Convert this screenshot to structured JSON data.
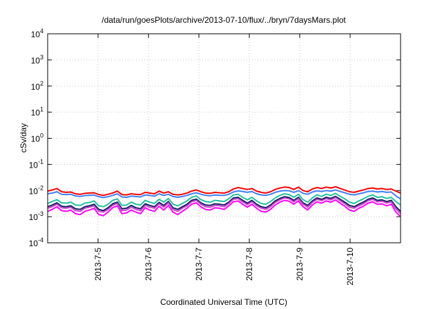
{
  "chart_data": {
    "type": "line",
    "title": "/data/run/goesPlots/archive/2013-07-10/flux/../bryn/7daysMars.plot",
    "xlabel": "Coordinated Universal Time (UTC)",
    "ylabel": "cSv/day",
    "yscale": "log",
    "ylim": [
      0.0001,
      10000
    ],
    "xlim": [
      0,
      7
    ],
    "grid": true,
    "legend": "none",
    "y_ticks": [
      {
        "base": "10",
        "exp": "-4",
        "v": -4
      },
      {
        "base": "10",
        "exp": "-3",
        "v": -3
      },
      {
        "base": "10",
        "exp": "-2",
        "v": -2
      },
      {
        "base": "10",
        "exp": "-1",
        "v": -1
      },
      {
        "base": "10",
        "exp": "0",
        "v": 0
      },
      {
        "base": "10",
        "exp": "1",
        "v": 1
      },
      {
        "base": "10",
        "exp": "2",
        "v": 2
      },
      {
        "base": "10",
        "exp": "3",
        "v": 3
      },
      {
        "base": "10",
        "exp": "4",
        "v": 4
      }
    ],
    "x_ticks": [
      {
        "label": "2013-7-5",
        "x": 1
      },
      {
        "label": "2013-7-6",
        "x": 2
      },
      {
        "label": "2013-7-7",
        "x": 3
      },
      {
        "label": "2013-7-8",
        "x": 4
      },
      {
        "label": "2013-7-9",
        "x": 5
      },
      {
        "label": "2013-7-10",
        "x": 6
      }
    ],
    "series": [
      {
        "color": "#ff0000",
        "values": [
          0.0095,
          0.0105,
          0.012,
          0.009,
          0.0085,
          0.0088,
          0.0075,
          0.0072,
          0.0078,
          0.008,
          0.0082,
          0.007,
          0.0065,
          0.0072,
          0.008,
          0.0095,
          0.007,
          0.0068,
          0.0075,
          0.0072,
          0.007,
          0.0085,
          0.008,
          0.0075,
          0.0095,
          0.008,
          0.009,
          0.0072,
          0.0068,
          0.0072,
          0.008,
          0.0095,
          0.0105,
          0.009,
          0.008,
          0.0078,
          0.0085,
          0.0082,
          0.008,
          0.009,
          0.0115,
          0.013,
          0.012,
          0.011,
          0.012,
          0.0095,
          0.0085,
          0.008,
          0.009,
          0.011,
          0.0125,
          0.0135,
          0.013,
          0.011,
          0.0135,
          0.01,
          0.009,
          0.0115,
          0.013,
          0.012,
          0.0135,
          0.0125,
          0.014,
          0.012,
          0.0105,
          0.009,
          0.0085,
          0.0095,
          0.0105,
          0.012,
          0.0125,
          0.0115,
          0.012,
          0.011,
          0.0115,
          0.0095,
          0.008
        ]
      },
      {
        "color": "#3f7fff",
        "values": [
          0.0075,
          0.008,
          0.009,
          0.0072,
          0.007,
          0.0072,
          0.0062,
          0.006,
          0.0064,
          0.0066,
          0.0067,
          0.0058,
          0.0054,
          0.0058,
          0.0065,
          0.0075,
          0.0057,
          0.0055,
          0.0061,
          0.0059,
          0.0057,
          0.0068,
          0.0065,
          0.0061,
          0.0075,
          0.0065,
          0.0072,
          0.0059,
          0.0055,
          0.0059,
          0.0065,
          0.0075,
          0.0082,
          0.0072,
          0.0065,
          0.0063,
          0.0068,
          0.0066,
          0.0065,
          0.0072,
          0.0088,
          0.0098,
          0.0092,
          0.0085,
          0.0092,
          0.0075,
          0.0068,
          0.0065,
          0.0072,
          0.0085,
          0.0095,
          0.01,
          0.0098,
          0.0085,
          0.01,
          0.0078,
          0.0072,
          0.0088,
          0.0098,
          0.0092,
          0.01,
          0.0095,
          0.0105,
          0.0092,
          0.0082,
          0.0072,
          0.0068,
          0.0075,
          0.0082,
          0.0092,
          0.0095,
          0.0088,
          0.0092,
          0.0085,
          0.0088,
          0.0062,
          0.0048
        ]
      },
      {
        "color": "#20c0a0",
        "values": [
          0.0032,
          0.0038,
          0.0045,
          0.0034,
          0.0033,
          0.0036,
          0.0028,
          0.0027,
          0.0033,
          0.0035,
          0.004,
          0.0026,
          0.0024,
          0.003,
          0.0042,
          0.0048,
          0.0027,
          0.0028,
          0.0036,
          0.003,
          0.0028,
          0.0042,
          0.0036,
          0.0032,
          0.0046,
          0.0036,
          0.005,
          0.003,
          0.0026,
          0.0032,
          0.004,
          0.0055,
          0.0062,
          0.0045,
          0.0038,
          0.0036,
          0.0042,
          0.004,
          0.0038,
          0.0048,
          0.0068,
          0.0072,
          0.0055,
          0.0044,
          0.0055,
          0.004,
          0.0032,
          0.003,
          0.0038,
          0.0052,
          0.0065,
          0.0075,
          0.007,
          0.0055,
          0.0072,
          0.0045,
          0.0036,
          0.0052,
          0.0068,
          0.006,
          0.0072,
          0.0065,
          0.0078,
          0.006,
          0.0048,
          0.0036,
          0.0032,
          0.004,
          0.0048,
          0.006,
          0.0068,
          0.0055,
          0.0058,
          0.005,
          0.0055,
          0.0038,
          0.0028
        ]
      },
      {
        "color": "#0f2060",
        "values": [
          0.0024,
          0.0028,
          0.0034,
          0.0025,
          0.0024,
          0.0026,
          0.002,
          0.0019,
          0.0024,
          0.0026,
          0.003,
          0.0019,
          0.0017,
          0.0022,
          0.0031,
          0.0036,
          0.002,
          0.0021,
          0.0027,
          0.0022,
          0.002,
          0.0031,
          0.0027,
          0.0024,
          0.0035,
          0.0027,
          0.0038,
          0.0022,
          0.0019,
          0.0024,
          0.003,
          0.0042,
          0.0047,
          0.0034,
          0.0028,
          0.0027,
          0.0031,
          0.003,
          0.0028,
          0.0036,
          0.0052,
          0.0055,
          0.0042,
          0.0033,
          0.0042,
          0.003,
          0.0024,
          0.0022,
          0.0028,
          0.004,
          0.005,
          0.0058,
          0.0054,
          0.0042,
          0.0055,
          0.0034,
          0.0027,
          0.004,
          0.0052,
          0.0046,
          0.0055,
          0.005,
          0.006,
          0.0046,
          0.0036,
          0.0027,
          0.0024,
          0.003,
          0.0036,
          0.0046,
          0.0052,
          0.0042,
          0.0044,
          0.0038,
          0.0042,
          0.0024,
          0.0016
        ]
      },
      {
        "color": "#cc44cc",
        "values": [
          0.0021,
          0.0024,
          0.003,
          0.0022,
          0.0021,
          0.0023,
          0.0017,
          0.0016,
          0.0021,
          0.0023,
          0.0026,
          0.0016,
          0.0015,
          0.0019,
          0.0027,
          0.0032,
          0.0017,
          0.0018,
          0.0023,
          0.0019,
          0.0017,
          0.0027,
          0.0023,
          0.0021,
          0.0031,
          0.0023,
          0.0034,
          0.0019,
          0.0016,
          0.0021,
          0.0026,
          0.0037,
          0.0042,
          0.003,
          0.0024,
          0.0023,
          0.0027,
          0.0026,
          0.0024,
          0.0032,
          0.0046,
          0.0049,
          0.0037,
          0.0029,
          0.0037,
          0.0026,
          0.0021,
          0.0019,
          0.0024,
          0.0035,
          0.0044,
          0.0052,
          0.0048,
          0.0037,
          0.0049,
          0.003,
          0.0023,
          0.0035,
          0.0046,
          0.0041,
          0.0049,
          0.0044,
          0.0054,
          0.0041,
          0.0031,
          0.0023,
          0.0021,
          0.0026,
          0.0031,
          0.0041,
          0.0046,
          0.0037,
          0.0039,
          0.0033,
          0.0037,
          0.002,
          0.0013
        ]
      },
      {
        "color": "#ff00ff",
        "values": [
          0.0016,
          0.0019,
          0.0024,
          0.0017,
          0.0016,
          0.0018,
          0.0013,
          0.0012,
          0.0016,
          0.0018,
          0.0021,
          0.0012,
          0.0011,
          0.0015,
          0.0022,
          0.0026,
          0.0013,
          0.0014,
          0.0018,
          0.0015,
          0.0013,
          0.0022,
          0.0018,
          0.0016,
          0.0025,
          0.0018,
          0.0027,
          0.0015,
          0.0012,
          0.0016,
          0.0021,
          0.003,
          0.0034,
          0.0024,
          0.0019,
          0.0018,
          0.0022,
          0.0021,
          0.0019,
          0.0026,
          0.0037,
          0.004,
          0.003,
          0.0023,
          0.003,
          0.0021,
          0.0016,
          0.0015,
          0.0019,
          0.0028,
          0.0036,
          0.0042,
          0.0039,
          0.003,
          0.004,
          0.0024,
          0.0018,
          0.0028,
          0.0037,
          0.0033,
          0.004,
          0.0036,
          0.0044,
          0.0033,
          0.0025,
          0.0018,
          0.0016,
          0.0021,
          0.0025,
          0.0033,
          0.0037,
          0.003,
          0.0031,
          0.0026,
          0.003,
          0.0015,
          0.001
        ]
      }
    ]
  }
}
